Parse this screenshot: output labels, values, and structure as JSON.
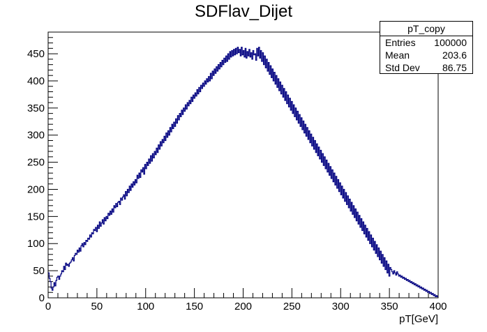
{
  "chart_data": {
    "type": "histogram",
    "title": "SDFlav_Dijet",
    "xlabel": "pT[GeV]",
    "ylabel": "",
    "xlim": [
      0,
      400
    ],
    "ylim": [
      0,
      490
    ],
    "x_ticks": [
      0,
      50,
      100,
      150,
      200,
      250,
      300,
      350,
      400
    ],
    "y_ticks": [
      0,
      50,
      100,
      150,
      200,
      250,
      300,
      350,
      400,
      450
    ],
    "grid": false,
    "line_color": "#000080",
    "bin_width": 1,
    "series": [
      {
        "name": "pT_copy",
        "values": [
          46,
          36,
          30,
          18,
          14,
          20,
          28,
          22,
          32,
          38,
          40,
          34,
          40,
          44,
          50,
          48,
          58,
          52,
          64,
          60,
          62,
          58,
          64,
          66,
          70,
          74,
          68,
          78,
          82,
          80,
          88,
          84,
          92,
          86,
          96,
          100,
          94,
          102,
          98,
          106,
          104,
          110,
          108,
          116,
          112,
          120,
          118,
          126,
          124,
          130,
          122,
          134,
          128,
          140,
          132,
          138,
          144,
          136,
          148,
          142,
          150,
          146,
          156,
          152,
          160,
          154,
          164,
          158,
          170,
          166,
          174,
          168,
          176,
          178,
          172,
          184,
          180,
          186,
          190,
          182,
          196,
          188,
          200,
          194,
          206,
          198,
          210,
          204,
          214,
          208,
          218,
          212,
          226,
          220,
          230,
          222,
          236,
          232,
          240,
          228,
          246,
          238,
          250,
          244,
          256,
          248,
          262,
          252,
          266,
          258,
          270,
          264,
          276,
          268,
          282,
          274,
          288,
          280,
          292,
          286,
          298,
          290,
          304,
          296,
          308,
          300,
          314,
          306,
          320,
          312,
          324,
          316,
          330,
          322,
          336,
          328,
          340,
          334,
          346,
          338,
          350,
          344,
          356,
          348,
          360,
          354,
          364,
          358,
          370,
          362,
          374,
          368,
          378,
          372,
          384,
          376,
          388,
          380,
          392,
          386,
          396,
          390,
          400,
          394,
          404,
          398,
          408,
          400,
          414,
          404,
          418,
          410,
          422,
          414,
          426,
          418,
          430,
          422,
          434,
          426,
          438,
          430,
          442,
          434,
          446,
          436,
          450,
          440,
          454,
          444,
          456,
          446,
          458,
          448,
          460,
          450,
          462,
          452,
          458,
          446,
          462,
          448,
          456,
          444,
          460,
          442,
          454,
          446,
          458,
          444,
          452,
          440,
          456,
          448,
          450,
          438,
          460,
          446,
          462,
          442,
          456,
          436,
          452,
          430,
          446,
          424,
          440,
          418,
          434,
          412,
          428,
          406,
          422,
          400,
          416,
          394,
          410,
          388,
          404,
          382,
          398,
          376,
          392,
          370,
          386,
          364,
          380,
          358,
          374,
          352,
          368,
          346,
          362,
          340,
          356,
          334,
          350,
          328,
          344,
          322,
          338,
          316,
          332,
          310,
          326,
          304,
          320,
          298,
          314,
          292,
          308,
          286,
          302,
          280,
          296,
          274,
          290,
          268,
          284,
          262,
          278,
          256,
          272,
          250,
          266,
          244,
          260,
          238,
          254,
          232,
          248,
          226,
          242,
          220,
          236,
          214,
          230,
          208,
          224,
          202,
          218,
          196,
          212,
          190,
          206,
          184,
          200,
          178,
          194,
          172,
          188,
          166,
          182,
          160,
          176,
          154,
          170,
          148,
          164,
          142,
          158,
          136,
          152,
          130,
          146,
          124,
          140,
          118,
          134,
          112,
          128,
          106,
          122,
          100,
          116,
          94,
          110,
          88,
          104,
          82,
          98,
          76,
          92,
          70,
          86,
          64,
          80,
          58,
          74,
          52,
          68,
          46,
          62,
          40,
          56,
          52,
          48,
          44,
          50,
          46,
          42,
          48,
          44,
          40,
          42,
          38,
          40,
          36,
          38,
          34,
          36,
          32,
          34,
          30,
          32,
          28,
          30,
          26,
          28,
          24,
          26,
          22,
          24,
          20,
          22,
          18,
          20,
          16,
          18,
          14,
          16,
          12,
          14,
          10,
          12,
          8,
          10,
          6,
          8,
          4,
          6,
          2,
          4,
          2
        ]
      }
    ],
    "stats": {
      "title": "pT_copy",
      "rows": [
        {
          "label": "Entries",
          "value": "100000"
        },
        {
          "label": "Mean",
          "value": "203.6"
        },
        {
          "label": "Std Dev",
          "value": "86.75"
        }
      ]
    }
  }
}
